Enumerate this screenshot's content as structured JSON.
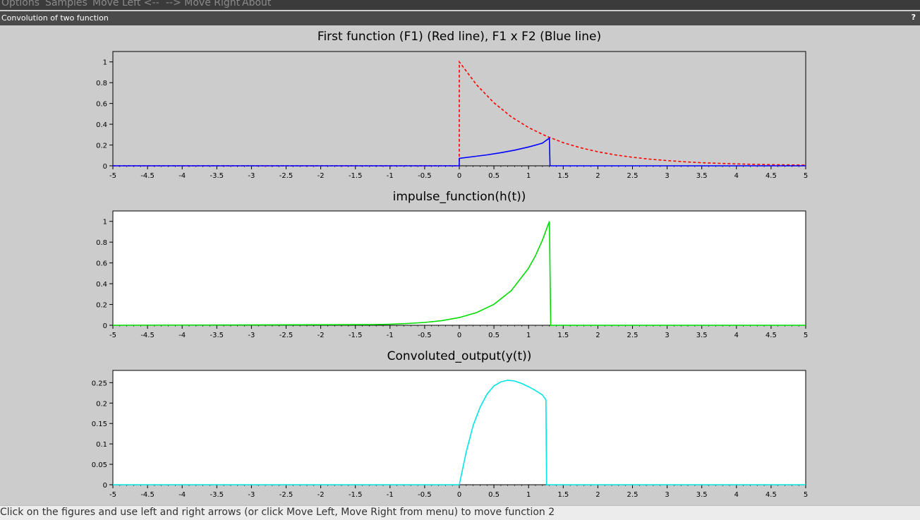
{
  "menu": {
    "items": [
      "Options",
      "Samples",
      "Move Left <--",
      "--> Move Right",
      "About"
    ]
  },
  "window": {
    "title": "Convolution of two function",
    "help": "?"
  },
  "status": {
    "text": "Click on the figures and use left and right arrows (or click Move Left, Move Right from menu) to move function 2"
  },
  "chart_data": [
    {
      "type": "line",
      "title": "First  function (F1) (Red line), F1 x F2 (Blue line)",
      "background": "#cccccc",
      "xlim": [
        -5,
        5
      ],
      "ylim": [
        0,
        1.1
      ],
      "xticks": [
        -5,
        -4.5,
        -4,
        -3.5,
        -3,
        -2.5,
        -2,
        -1.5,
        -1,
        -0.5,
        0,
        0.5,
        1,
        1.5,
        2,
        2.5,
        3,
        3.5,
        4,
        4.5,
        5
      ],
      "yticks": [
        0,
        0.2,
        0.4,
        0.6,
        0.8,
        1
      ],
      "series": [
        {
          "color": "#ff0000",
          "dash": true,
          "x": [
            -5,
            -0.001,
            0,
            0.25,
            0.5,
            0.75,
            1,
            1.25,
            1.5,
            1.75,
            2,
            2.25,
            2.5,
            2.75,
            3,
            3.25,
            3.5,
            3.75,
            4,
            4.25,
            4.5,
            4.75,
            5
          ],
          "y": [
            0,
            0,
            1,
            0.779,
            0.607,
            0.472,
            0.368,
            0.287,
            0.223,
            0.174,
            0.135,
            0.105,
            0.082,
            0.064,
            0.05,
            0.039,
            0.03,
            0.024,
            0.018,
            0.014,
            0.011,
            0.009,
            0.007
          ]
        },
        {
          "color": "#0000ff",
          "dash": false,
          "x": [
            -5,
            -0.001,
            0,
            0.2,
            0.4,
            0.6,
            0.8,
            1.0,
            1.1,
            1.2,
            1.3,
            1.31,
            5
          ],
          "y": [
            0,
            0,
            0.072,
            0.088,
            0.105,
            0.126,
            0.151,
            0.181,
            0.199,
            0.218,
            0.267,
            0,
            0
          ]
        }
      ]
    },
    {
      "type": "line",
      "title": "impulse_function(h(t))",
      "background": "#ffffff",
      "xlim": [
        -5,
        5
      ],
      "ylim": [
        0,
        1.1
      ],
      "xticks": [
        -5,
        -4.5,
        -4,
        -3.5,
        -3,
        -2.5,
        -2,
        -1.5,
        -1,
        -0.5,
        0,
        0.5,
        1,
        1.5,
        2,
        2.5,
        3,
        3.5,
        4,
        4.5,
        5
      ],
      "yticks": [
        0,
        0.2,
        0.4,
        0.6,
        0.8,
        1
      ],
      "series": [
        {
          "color": "#00dd00",
          "dash": false,
          "x": [
            -5,
            -1.25,
            -1.0,
            -0.75,
            -0.5,
            -0.25,
            0,
            0.25,
            0.5,
            0.75,
            1.0,
            1.1,
            1.2,
            1.3,
            1.32,
            5
          ],
          "y": [
            0,
            0.007,
            0.01,
            0.017,
            0.027,
            0.045,
            0.074,
            0.122,
            0.202,
            0.333,
            0.549,
            0.67,
            0.819,
            1.0,
            0,
            0
          ]
        }
      ]
    },
    {
      "type": "line",
      "title": "Convoluted_output(y(t))",
      "background": "#ffffff",
      "xlim": [
        -5,
        5
      ],
      "ylim": [
        0,
        0.28
      ],
      "xticks": [
        -5,
        -4.5,
        -4,
        -3.5,
        -3,
        -2.5,
        -2,
        -1.5,
        -1,
        -0.5,
        0,
        0.5,
        1,
        1.5,
        2,
        2.5,
        3,
        3.5,
        4,
        4.5,
        5
      ],
      "yticks": [
        0,
        0.05,
        0.1,
        0.15,
        0.2,
        0.25
      ],
      "series": [
        {
          "color": "#00e5e5",
          "dash": false,
          "x": [
            -5,
            0,
            0.1,
            0.2,
            0.3,
            0.4,
            0.5,
            0.6,
            0.7,
            0.8,
            0.9,
            1.0,
            1.1,
            1.2,
            1.25,
            1.26,
            5
          ],
          "y": [
            0,
            0,
            0.08,
            0.145,
            0.19,
            0.222,
            0.242,
            0.252,
            0.256,
            0.254,
            0.248,
            0.24,
            0.231,
            0.22,
            0.208,
            0,
            0
          ]
        }
      ]
    }
  ]
}
